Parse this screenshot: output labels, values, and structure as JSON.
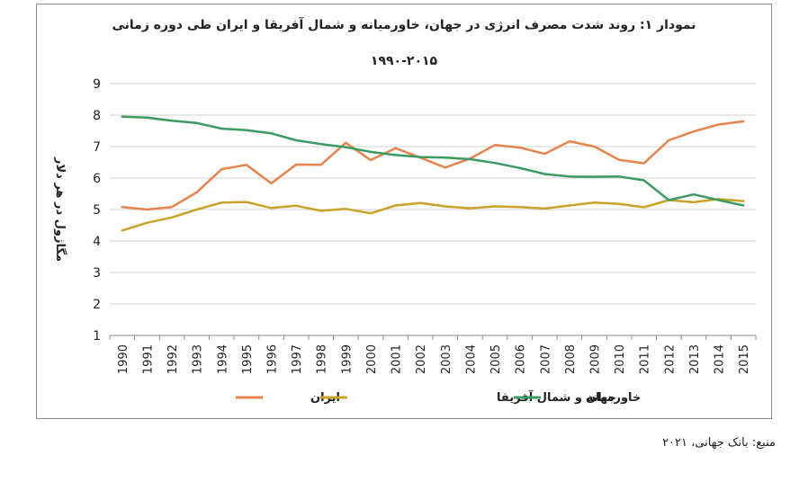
{
  "chart_data": {
    "type": "line",
    "title": "نمودار ۱: روند شدت مصرف انرژی در جهان، خاورمیانه و شمال آفریقا و ایران طی دوره زمانی",
    "subtitle": "۱۹۹۰-۲۰۱۵",
    "xlabel": "",
    "ylabel": "مگاژول در هر دلار",
    "ylim": [
      1,
      9
    ],
    "yticks": [
      "1",
      "2",
      "3",
      "4",
      "5",
      "6",
      "7",
      "8",
      "9"
    ],
    "grid": "horizontal",
    "legend_position": "bottom",
    "categories": [
      "1990",
      "1991",
      "1992",
      "1993",
      "1994",
      "1995",
      "1996",
      "1997",
      "1998",
      "1999",
      "2000",
      "2001",
      "2002",
      "2003",
      "2004",
      "2005",
      "2006",
      "2007",
      "2008",
      "2009",
      "2010",
      "2011",
      "2012",
      "2013",
      "2014",
      "2015"
    ],
    "series": [
      {
        "name": "ایران",
        "color": "#e8834a",
        "values": [
          5.08,
          5.0,
          5.08,
          5.55,
          6.28,
          6.42,
          5.83,
          6.43,
          6.42,
          7.12,
          6.57,
          6.95,
          6.65,
          6.33,
          6.62,
          7.05,
          6.97,
          6.77,
          7.17,
          7.0,
          6.58,
          6.47,
          7.2,
          7.48,
          7.7,
          7.8
        ]
      },
      {
        "name": "خاورمیانه و شمال آفریقا",
        "color": "#c9a227",
        "values": [
          4.33,
          4.58,
          4.75,
          5.0,
          5.22,
          5.24,
          5.05,
          5.12,
          4.96,
          5.02,
          4.88,
          5.13,
          5.21,
          5.1,
          5.04,
          5.1,
          5.08,
          5.03,
          5.13,
          5.22,
          5.18,
          5.07,
          5.3,
          5.23,
          5.33,
          5.27
        ]
      },
      {
        "name": "جهان",
        "color": "#3a9b62",
        "values": [
          7.95,
          7.92,
          7.82,
          7.75,
          7.57,
          7.52,
          7.42,
          7.2,
          7.08,
          6.98,
          6.83,
          6.73,
          6.67,
          6.65,
          6.6,
          6.48,
          6.32,
          6.13,
          6.05,
          6.04,
          6.05,
          5.93,
          5.3,
          5.48,
          5.3,
          5.13
        ]
      }
    ]
  },
  "source": "منبع: بانک جهانی، ۲۰۲۱"
}
